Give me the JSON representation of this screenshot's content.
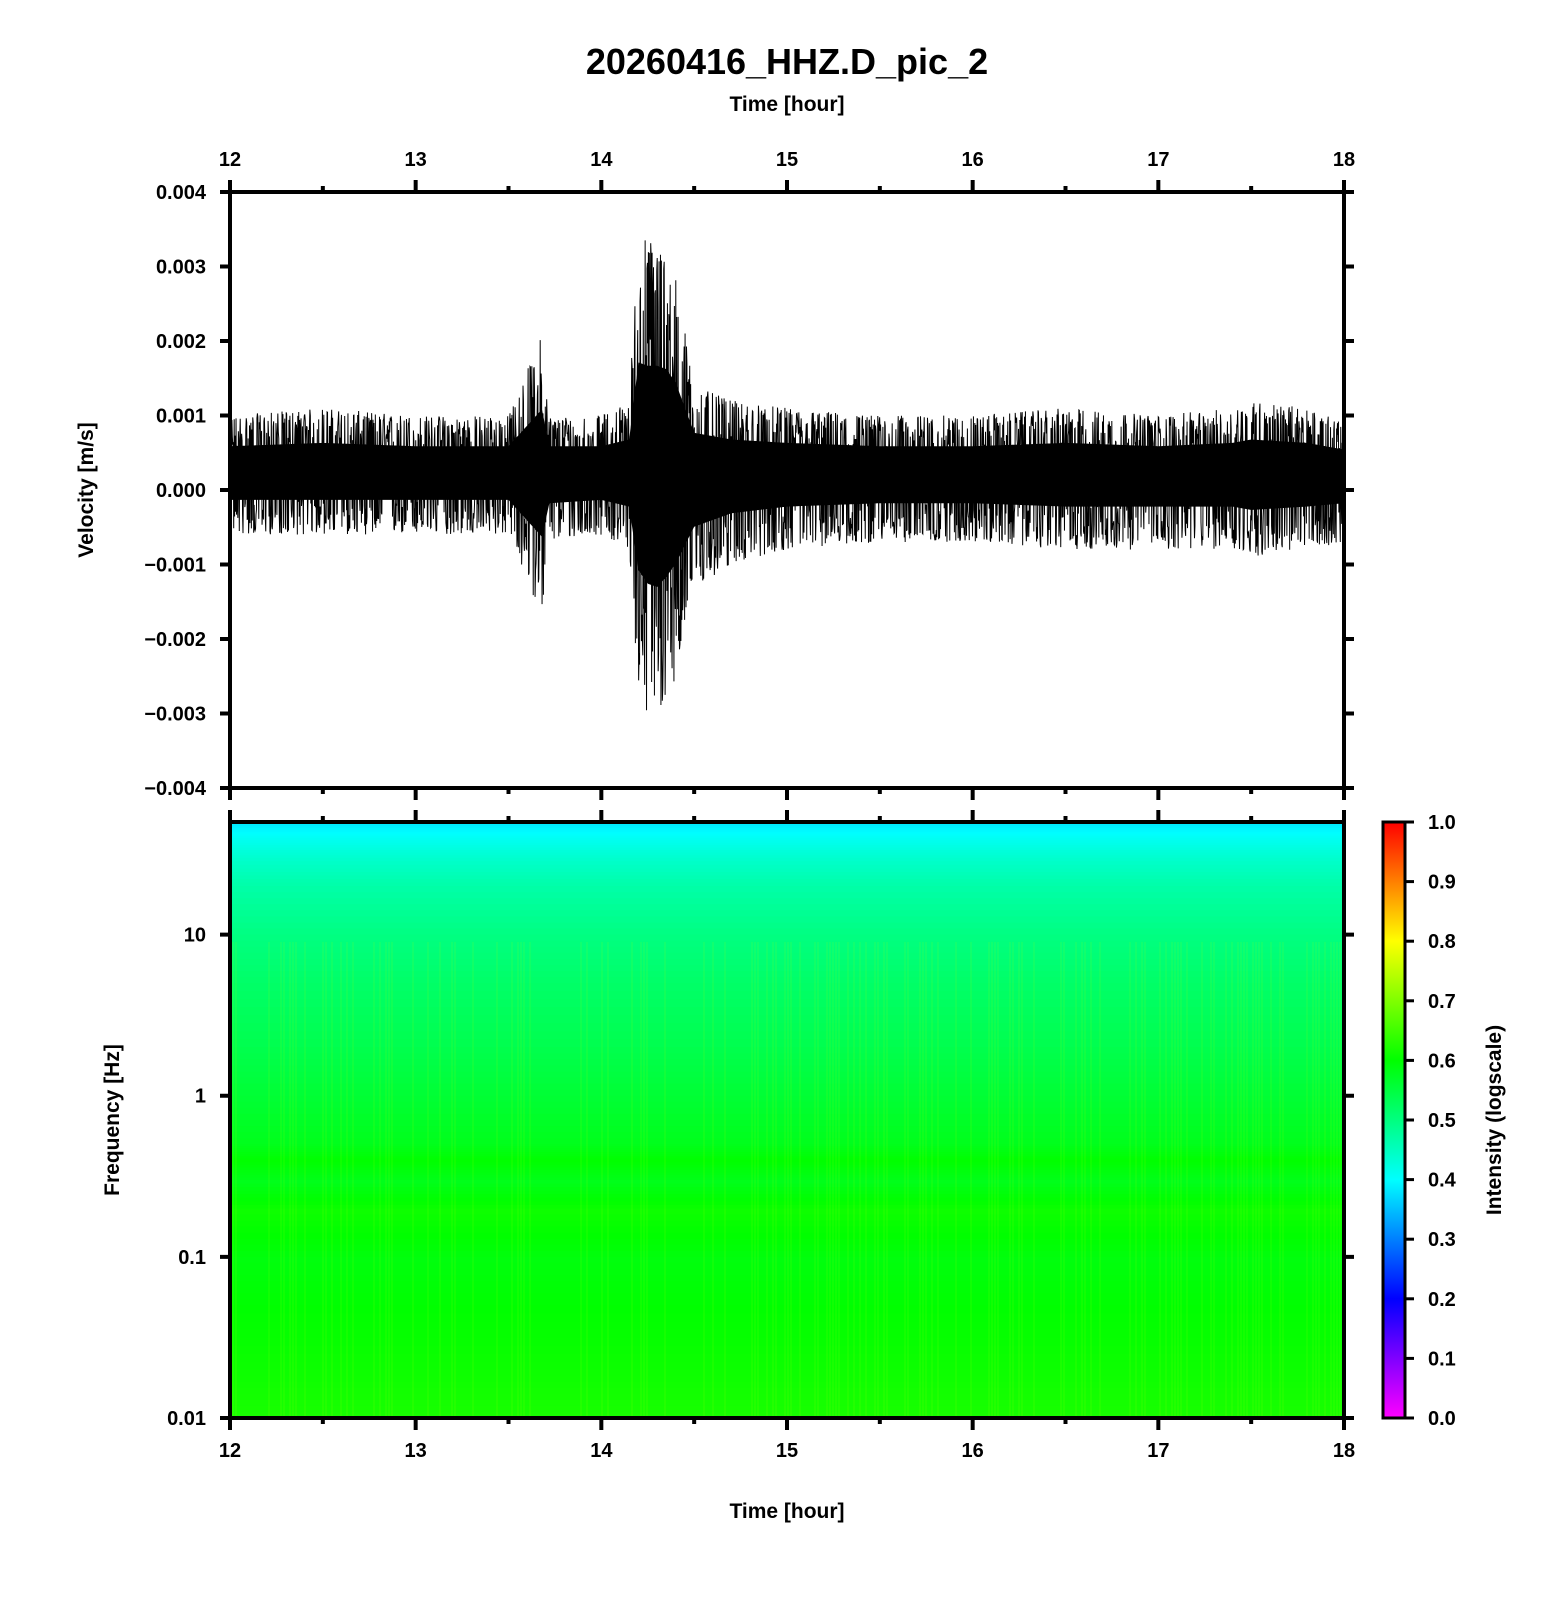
{
  "chart_data": [
    {
      "type": "line",
      "title": "20260416_HHZ.D_pic_2",
      "xlabel": "Time [hour]",
      "ylabel": "Velocity [m/s]",
      "xlim": [
        12,
        18
      ],
      "ylim": [
        -0.004,
        0.004
      ],
      "x_ticks": [
        "12",
        "13",
        "14",
        "15",
        "16",
        "17",
        "18"
      ],
      "y_ticks": [
        "0.004",
        "0.003",
        "0.002",
        "0.001",
        "0.000",
        "−0.001",
        "−0.002",
        "−0.003",
        "−0.004"
      ],
      "series": [
        {
          "color": "#000000",
          "envelope": {
            "x": [
              12.0,
              12.5,
              13.0,
              13.5,
              13.68,
              13.72,
              14.0,
              14.15,
              14.2,
              14.25,
              14.3,
              14.35,
              14.4,
              14.5,
              14.7,
              15.0,
              15.5,
              16.0,
              16.5,
              17.0,
              17.4,
              17.5,
              17.8,
              18.0
            ],
            "max": [
              0.001,
              0.0011,
              0.001,
              0.001,
              0.0021,
              0.001,
              0.001,
              0.0012,
              0.0035,
              0.0034,
              0.0034,
              0.0033,
              0.0029,
              0.0014,
              0.0012,
              0.0011,
              0.001,
              0.001,
              0.0011,
              0.001,
              0.0011,
              0.0012,
              0.0011,
              0.0009
            ],
            "min": [
              -0.0006,
              -0.0006,
              -0.0006,
              -0.0006,
              -0.0017,
              -0.0007,
              -0.0006,
              -0.0008,
              -0.0027,
              -0.0031,
              -0.0032,
              -0.0029,
              -0.0025,
              -0.0014,
              -0.001,
              -0.0008,
              -0.0007,
              -0.0007,
              -0.0008,
              -0.0008,
              -0.0008,
              -0.0009,
              -0.0008,
              -0.0007
            ]
          }
        }
      ]
    },
    {
      "type": "heatmap",
      "xlabel": "Time [hour]",
      "ylabel": "Frequency [Hz]",
      "xlim": [
        12,
        18
      ],
      "ylim": [
        0.01,
        50
      ],
      "yscale": "log",
      "x_ticks": [
        "12",
        "13",
        "14",
        "15",
        "16",
        "17",
        "18"
      ],
      "y_ticks": [
        "10",
        "1",
        "0.1",
        "0.01"
      ],
      "colorbar": {
        "label": "Intensity (logscale)",
        "range": [
          0.0,
          1.0
        ],
        "ticks": [
          "1.0",
          "0.9",
          "0.8",
          "0.7",
          "0.6",
          "0.5",
          "0.4",
          "0.3",
          "0.2",
          "0.1",
          "0.0"
        ],
        "colors": [
          "#ff00ff",
          "#0000ff",
          "#00ffff",
          "#00ff00",
          "#ffff00",
          "#ff0000"
        ]
      },
      "intensity_profile": {
        "frequency_hz": [
          50,
          40,
          30,
          20,
          10,
          5,
          2,
          1,
          0.5,
          0.4,
          0.3,
          0.2,
          0.1,
          0.05,
          0.02,
          0.01
        ],
        "intensity": [
          0.38,
          0.41,
          0.44,
          0.47,
          0.5,
          0.52,
          0.54,
          0.56,
          0.58,
          0.6,
          0.58,
          0.61,
          0.59,
          0.6,
          0.61,
          0.62
        ]
      }
    }
  ]
}
